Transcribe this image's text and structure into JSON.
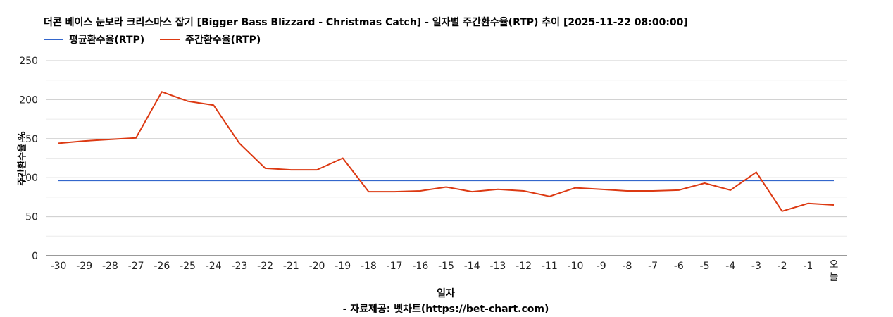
{
  "chart_data": {
    "type": "line",
    "title": "더콘 베이스 눈보라 크리스마스 잡기 [Bigger Bass Blizzard - Christmas Catch] - 일자별 주간환수율(RTP) 추이 [2025-11-22 08:00:00]",
    "xlabel": "일자",
    "ylabel": "주간환수율 %",
    "credit": "- 자료제공: 벳차트(https://bet-chart.com)",
    "ylim": [
      0,
      250
    ],
    "yticks": [
      "0",
      "50",
      "100",
      "150",
      "200",
      "250"
    ],
    "grid": true,
    "legend_position": "top-left",
    "categories": [
      "-30",
      "-29",
      "-28",
      "-27",
      "-26",
      "-25",
      "-24",
      "-23",
      "-22",
      "-21",
      "-20",
      "-19",
      "-18",
      "-17",
      "-16",
      "-15",
      "-14",
      "-13",
      "-12",
      "-11",
      "-10",
      "-9",
      "-8",
      "-7",
      "-6",
      "-5",
      "-4",
      "-3",
      "-2",
      "-1",
      "오늘"
    ],
    "series": [
      {
        "name": "평균환수율(RTP)",
        "color": "#3366cc",
        "values": [
          96.5,
          96.5,
          96.5,
          96.5,
          96.5,
          96.5,
          96.5,
          96.5,
          96.5,
          96.5,
          96.5,
          96.5,
          96.5,
          96.5,
          96.5,
          96.5,
          96.5,
          96.5,
          96.5,
          96.5,
          96.5,
          96.5,
          96.5,
          96.5,
          96.5,
          96.5,
          96.5,
          96.5,
          96.5,
          96.5,
          96.5
        ]
      },
      {
        "name": "주간환수율(RTP)",
        "color": "#dc3912",
        "values": [
          144,
          147,
          149,
          151,
          210,
          198,
          193,
          144,
          112,
          110,
          110,
          125,
          82,
          82,
          83,
          88,
          82,
          85,
          83,
          76,
          87,
          85,
          83,
          83,
          84,
          93,
          84,
          107,
          57,
          67,
          65
        ]
      }
    ]
  }
}
